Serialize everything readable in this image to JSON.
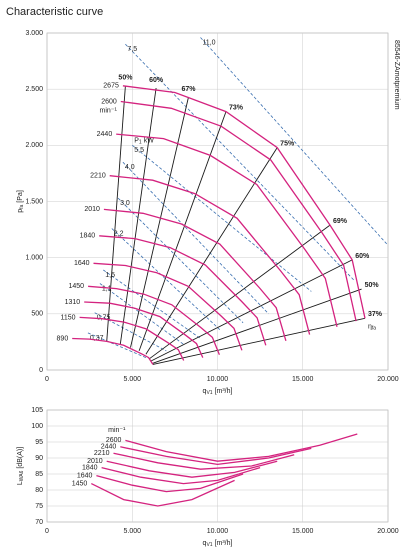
{
  "chart_data": [
    {
      "type": "line",
      "title": "Characteristic curve",
      "model": "85546-ZAmotpremium",
      "xlabel": {
        "main": "q",
        "sub": "V1",
        "rest": "[m³/h]"
      },
      "ylabel": {
        "main": "p",
        "sub": "fa",
        "rest": "[Pa]"
      },
      "xlim": [
        0,
        20000
      ],
      "ylim": [
        0,
        3000
      ],
      "xticks": [
        0,
        {
          "value": 5000,
          "label": "5.000"
        },
        {
          "value": 10000,
          "label": "10.000"
        },
        {
          "value": 15000,
          "label": "15.000"
        },
        {
          "value": 20000,
          "label": "20.000"
        }
      ],
      "yticks": [
        0,
        500,
        {
          "value": 1000,
          "label": "1.000"
        },
        {
          "value": 1500,
          "label": "1.500"
        },
        {
          "value": 2000,
          "label": "2.000"
        },
        {
          "value": 2500,
          "label": "2.500"
        },
        {
          "value": 3000,
          "label": "3.000"
        }
      ],
      "grid": true,
      "speed_unit": "min⁻¹",
      "power_unit": {
        "main": "P",
        "sub": "1",
        "rest": "kW"
      },
      "efficiency_symbol": {
        "main": "η",
        "sub": "fa"
      },
      "speed_color": "#d4237f",
      "efficiency_color": "#1a1a1a",
      "power_color": "#3a6fb0",
      "speed_curves": [
        {
          "name": "2675",
          "x": [
            4450,
            7500,
            10500,
            13500,
            16600,
            17900,
            18650
          ],
          "values": [
            2530,
            2470,
            2300,
            1980,
            1290,
            980,
            460
          ]
        },
        {
          "name": "2600",
          "x": [
            4330,
            7290,
            10210,
            13120,
            16140,
            17400,
            18130
          ],
          "values": [
            2390,
            2330,
            2170,
            1870,
            1220,
            930,
            435
          ]
        },
        {
          "name": "2440",
          "x": [
            4060,
            6840,
            9580,
            12310,
            15140,
            16320,
            17010
          ],
          "values": [
            2100,
            2060,
            1910,
            1650,
            1070,
            815,
            385
          ]
        },
        {
          "name": "2210",
          "x": [
            3680,
            6200,
            8670,
            11150,
            13710,
            14790,
            15400
          ],
          "values": [
            1730,
            1690,
            1570,
            1350,
            880,
            670,
            315
          ]
        },
        {
          "name": "2010",
          "x": [
            3340,
            5630,
            7890,
            10140,
            12470,
            13440,
            14010
          ],
          "values": [
            1430,
            1395,
            1300,
            1120,
            730,
            555,
            260
          ]
        },
        {
          "name": "1840",
          "x": [
            3060,
            5160,
            7220,
            9290,
            11420,
            12320,
            12830
          ],
          "values": [
            1195,
            1170,
            1090,
            935,
            610,
            465,
            220
          ]
        },
        {
          "name": "1640",
          "x": [
            2730,
            4600,
            6440,
            8280,
            10180,
            10970,
            11430
          ],
          "values": [
            950,
            930,
            865,
            745,
            485,
            370,
            175
          ]
        },
        {
          "name": "1450",
          "x": [
            2410,
            4070,
            5690,
            7320,
            9000,
            9700,
            10110
          ],
          "values": [
            745,
            725,
            675,
            580,
            380,
            290,
            135
          ]
        },
        {
          "name": "1310",
          "x": [
            2180,
            3680,
            5150,
            6620,
            8130,
            8770,
            9140
          ],
          "values": [
            605,
            595,
            550,
            475,
            310,
            235,
            110
          ]
        },
        {
          "name": "1150",
          "x": [
            1910,
            3230,
            4520,
            5810,
            7140,
            7700,
            8020
          ],
          "values": [
            468,
            457,
            426,
            366,
            239,
            181,
            85
          ]
        },
        {
          "name": "890",
          "x": [
            1480,
            2500,
            3500,
            4500,
            5530,
            5960,
            6210
          ],
          "values": [
            280,
            275,
            255,
            220,
            145,
            110,
            50
          ]
        }
      ],
      "efficiency_lines": [
        {
          "name": "50%",
          "x": [
            3500,
            4600
          ],
          "values": [
            250,
            2530
          ]
        },
        {
          "name": "60%",
          "x": [
            4300,
            6400
          ],
          "values": [
            230,
            2510
          ]
        },
        {
          "name": "67%",
          "x": [
            4900,
            8300
          ],
          "values": [
            200,
            2430
          ]
        },
        {
          "name": "73%",
          "x": [
            5400,
            10500
          ],
          "values": [
            170,
            2300
          ]
        },
        {
          "name": "75%",
          "x": [
            5800,
            13500
          ],
          "values": [
            140,
            1980
          ]
        },
        {
          "name": "69%",
          "x": [
            6000,
            16600
          ],
          "values": [
            100,
            1290
          ]
        },
        {
          "name": "60%",
          "x": [
            6100,
            17900
          ],
          "values": [
            80,
            980
          ]
        },
        {
          "name": "50%",
          "x": [
            6200,
            18450
          ],
          "values": [
            60,
            720
          ]
        },
        {
          "name": "37%",
          "x": [
            6210,
            18650
          ],
          "values": [
            50,
            460
          ]
        }
      ],
      "power_lines": [
        {
          "name": "11,0",
          "x": [
            9000,
            20000
          ],
          "values": [
            2960,
            1110
          ]
        },
        {
          "name": "7,5",
          "x": [
            4600,
            18000
          ],
          "values": [
            2900,
            800
          ]
        },
        {
          "name": "5,5",
          "x": [
            5000,
            15500
          ],
          "values": [
            2000,
            700
          ]
        },
        {
          "name": "4,0",
          "x": [
            4450,
            13000
          ],
          "values": [
            1850,
            500
          ]
        },
        {
          "name": "3,0",
          "x": [
            4170,
            11500
          ],
          "values": [
            1530,
            420
          ]
        },
        {
          "name": "2,2",
          "x": [
            3800,
            10200
          ],
          "values": [
            1260,
            350
          ]
        },
        {
          "name": "1,5",
          "x": [
            3300,
            9000
          ],
          "values": [
            890,
            280
          ]
        },
        {
          "name": "1,1",
          "x": [
            3100,
            8000
          ],
          "values": [
            770,
            230
          ]
        },
        {
          "name": "0,75",
          "x": [
            2800,
            7000
          ],
          "values": [
            510,
            170
          ]
        },
        {
          "name": "0,37",
          "x": [
            2400,
            5800
          ],
          "values": [
            330,
            110
          ]
        }
      ]
    },
    {
      "type": "line",
      "xlabel": {
        "main": "q",
        "sub": "V1",
        "rest": "[m³/h]"
      },
      "ylabel": {
        "main": "L",
        "sub": "WA6",
        "rest": "[dB(A)]"
      },
      "xlim": [
        0,
        20000
      ],
      "ylim": [
        70,
        105
      ],
      "xticks": [
        0,
        {
          "value": 5000,
          "label": "5.000"
        },
        {
          "value": 10000,
          "label": "10.000"
        },
        {
          "value": 15000,
          "label": "15.000"
        },
        {
          "value": 20000,
          "label": "20.000"
        }
      ],
      "yticks": [
        70,
        75,
        80,
        85,
        90,
        95,
        100,
        105
      ],
      "grid": true,
      "speed_unit": "min⁻¹",
      "speed_color": "#d4237f",
      "speed_curves": [
        {
          "name": "2600",
          "x": [
            4600,
            7000,
            10000,
            13000,
            16000,
            18200
          ],
          "values": [
            95.5,
            92,
            89,
            90.5,
            94,
            97.5
          ]
        },
        {
          "name": "2440",
          "x": [
            4300,
            7000,
            10000,
            13000,
            15500
          ],
          "values": [
            93.5,
            90.5,
            88,
            90,
            93
          ]
        },
        {
          "name": "2210",
          "x": [
            3900,
            6500,
            9000,
            12000,
            14500
          ],
          "values": [
            91.5,
            88.5,
            86.5,
            87.5,
            91
          ]
        },
        {
          "name": "2010",
          "x": [
            3500,
            6000,
            8500,
            11000,
            13500
          ],
          "values": [
            89,
            86,
            84,
            85.5,
            89
          ]
        },
        {
          "name": "1840",
          "x": [
            3200,
            5500,
            8000,
            10000,
            12500
          ],
          "values": [
            87,
            84,
            82,
            83,
            87
          ]
        },
        {
          "name": "1640",
          "x": [
            2900,
            5000,
            7000,
            9000,
            11500
          ],
          "values": [
            84.5,
            81.5,
            79.5,
            80.5,
            85
          ]
        },
        {
          "name": "1450",
          "x": [
            2600,
            4500,
            6500,
            8500,
            11000
          ],
          "values": [
            82,
            77,
            75,
            77,
            83
          ]
        }
      ]
    }
  ]
}
